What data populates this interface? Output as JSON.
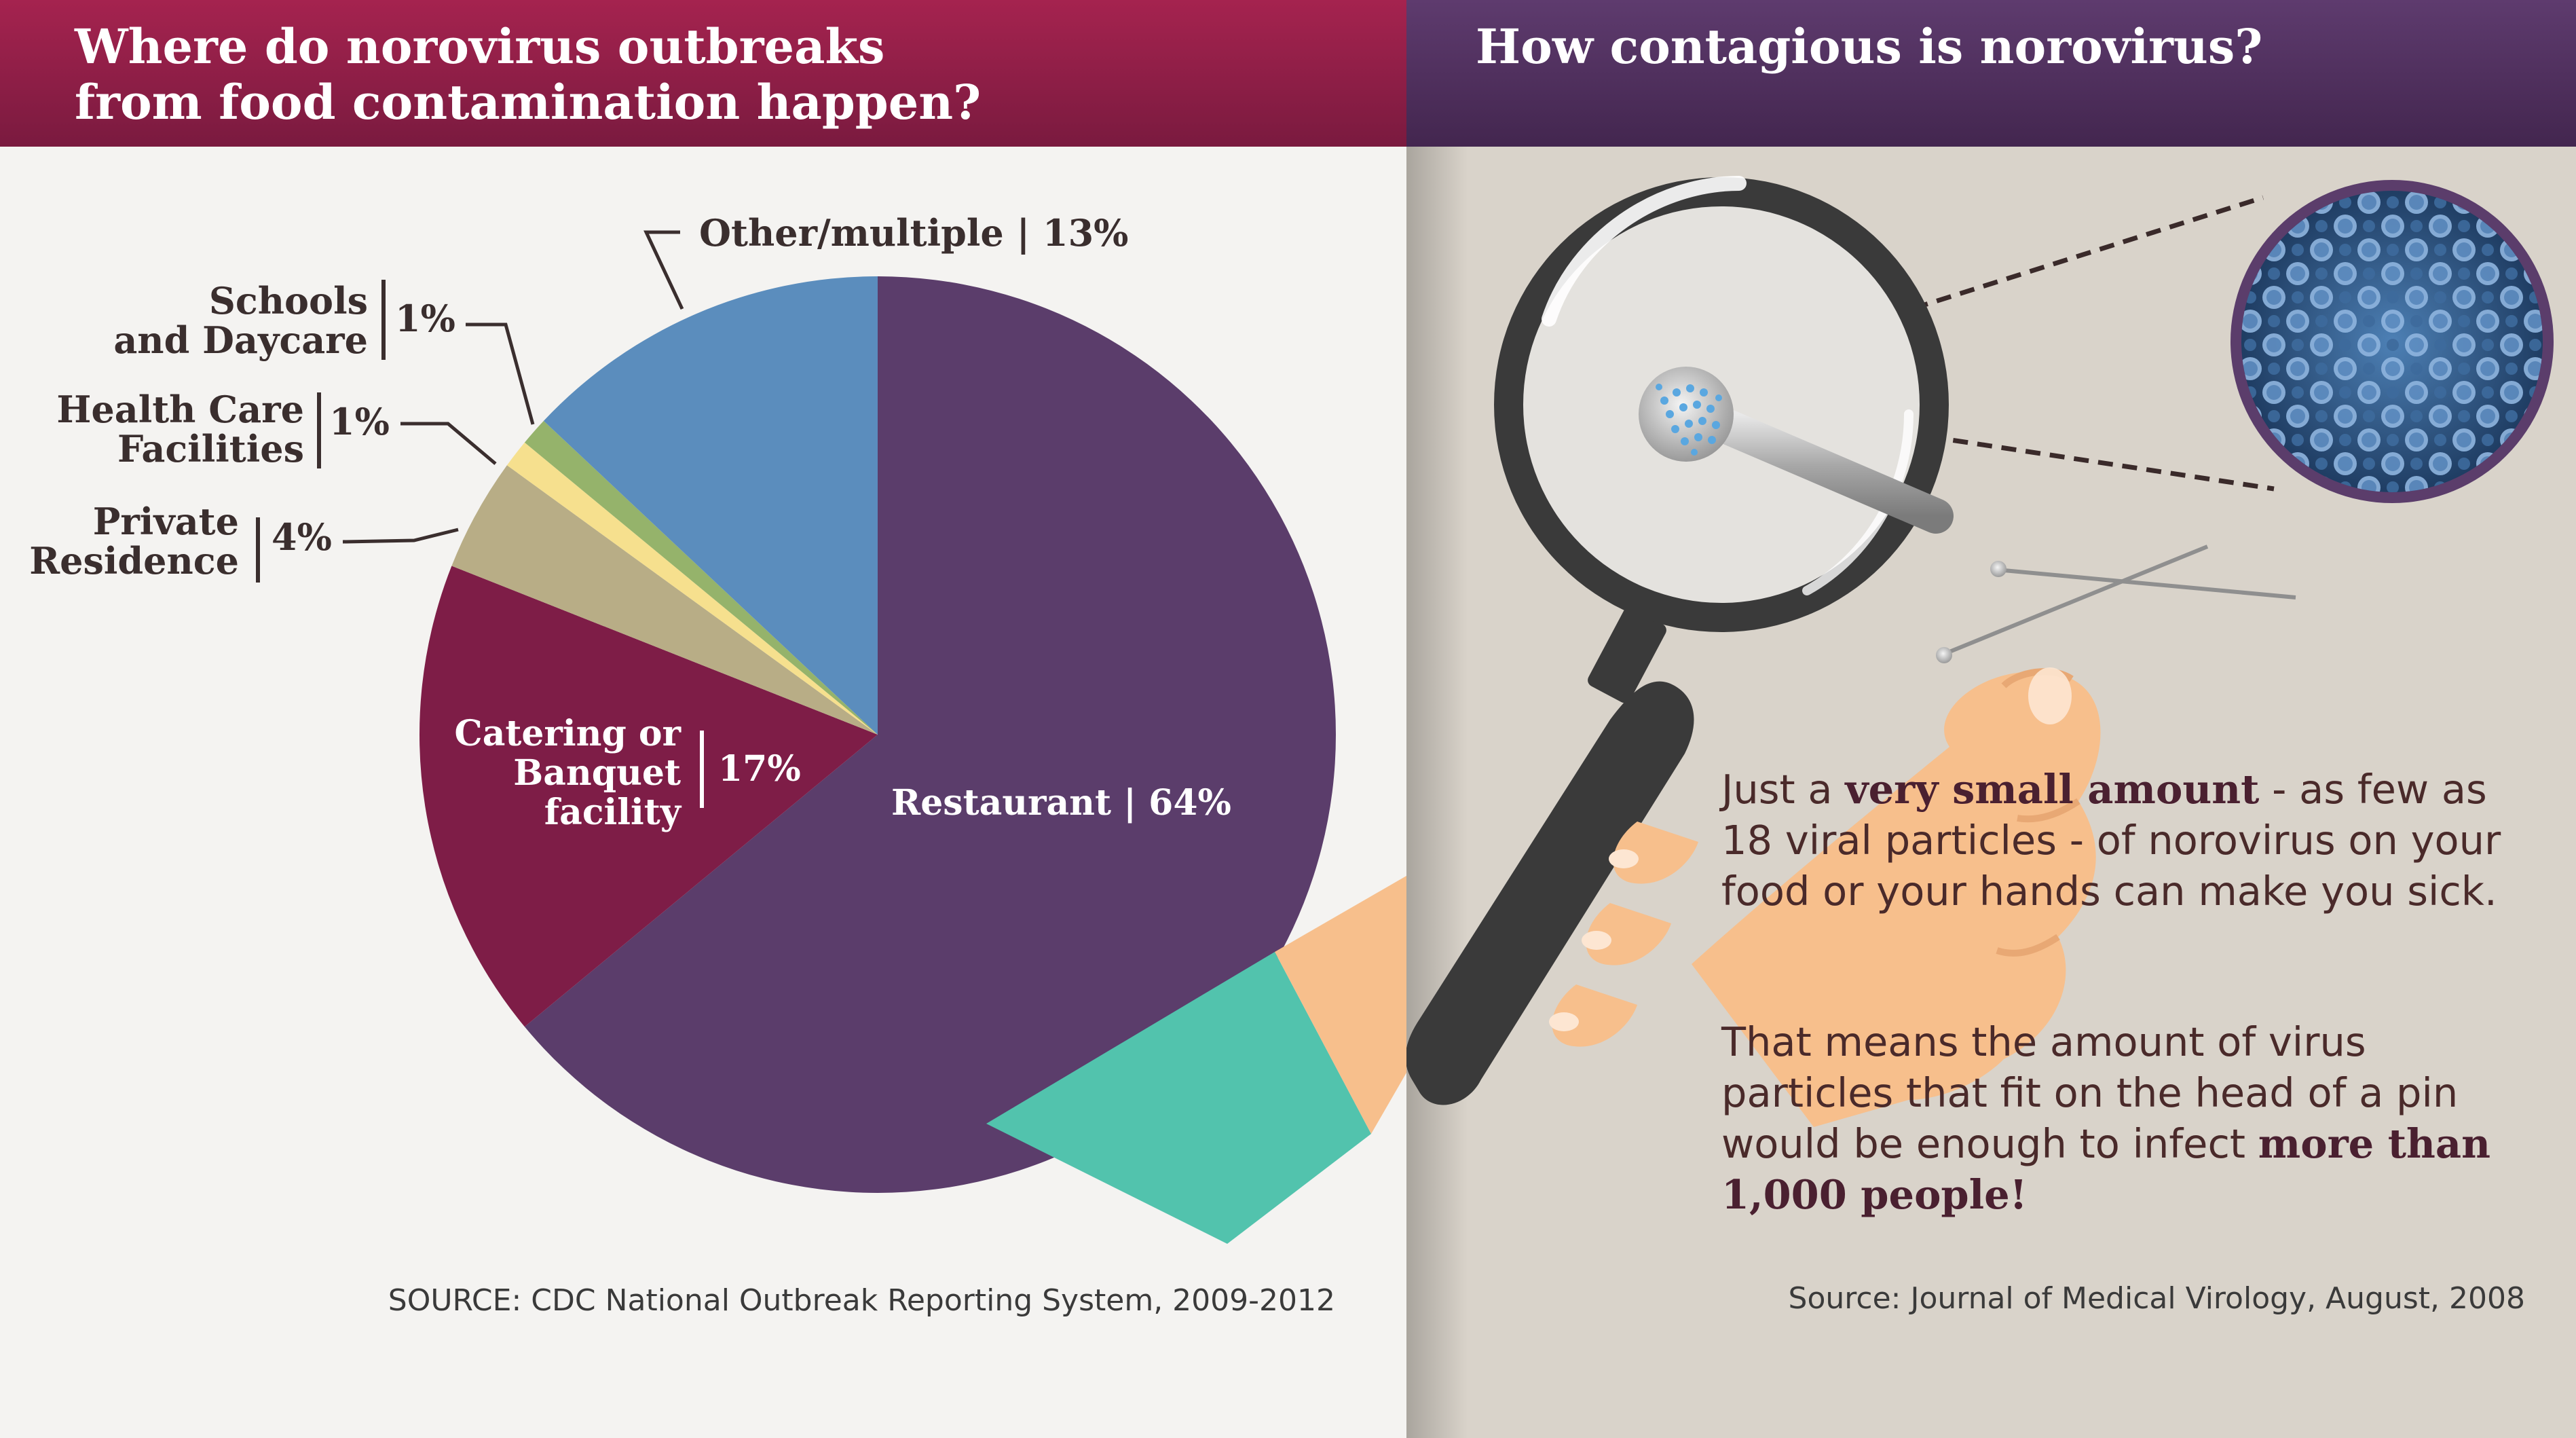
{
  "left_panel": {
    "title": "Where do norovirus outbreaks\nfrom food contamination happen?",
    "source": "SOURCE: CDC National Outbreak Reporting System, 2009-2012"
  },
  "right_panel": {
    "title": "How contagious is norovirus?",
    "p1_pre": "Just a ",
    "p1_bold": "very small amount",
    "p1_post": " - as few as 18 viral particles - of norovirus on your food or your hands can make you sick.",
    "p2_pre": "That means the amount of virus particles that fit on the head of a pin would be enough to infect ",
    "p2_bold": "more than 1,000 people!",
    "source": "Source: Journal of Medical Virology, August, 2008"
  },
  "colors": {
    "restaurant": "#5b3d6b",
    "catering": "#7e1d47",
    "private": "#b8ad86",
    "health": "#f6e08e",
    "schools": "#95b36b",
    "other": "#5b8dbd",
    "teal": "#52c3ad",
    "hand": "#f7bf8c"
  },
  "chart_data": {
    "type": "pie",
    "slices": [
      {
        "label": "Restaurant",
        "value": 64,
        "text": "Restaurant | 64%"
      },
      {
        "label": "Catering or Banquet facility",
        "value": 17,
        "lines": [
          "Catering or",
          "Banquet",
          "facility"
        ],
        "pct": "17%"
      },
      {
        "label": "Private Residence",
        "value": 4,
        "lines": [
          "Private",
          "Residence"
        ],
        "pct": "4%"
      },
      {
        "label": "Health Care Facilities",
        "value": 1,
        "lines": [
          "Health Care",
          "Facilities"
        ],
        "pct": "1%"
      },
      {
        "label": "Schools and Daycare",
        "value": 1,
        "lines": [
          "Schools",
          "and Daycare"
        ],
        "pct": "1%"
      },
      {
        "label": "Other/multiple",
        "value": 13,
        "text": "Other/multiple | 13%"
      }
    ]
  }
}
